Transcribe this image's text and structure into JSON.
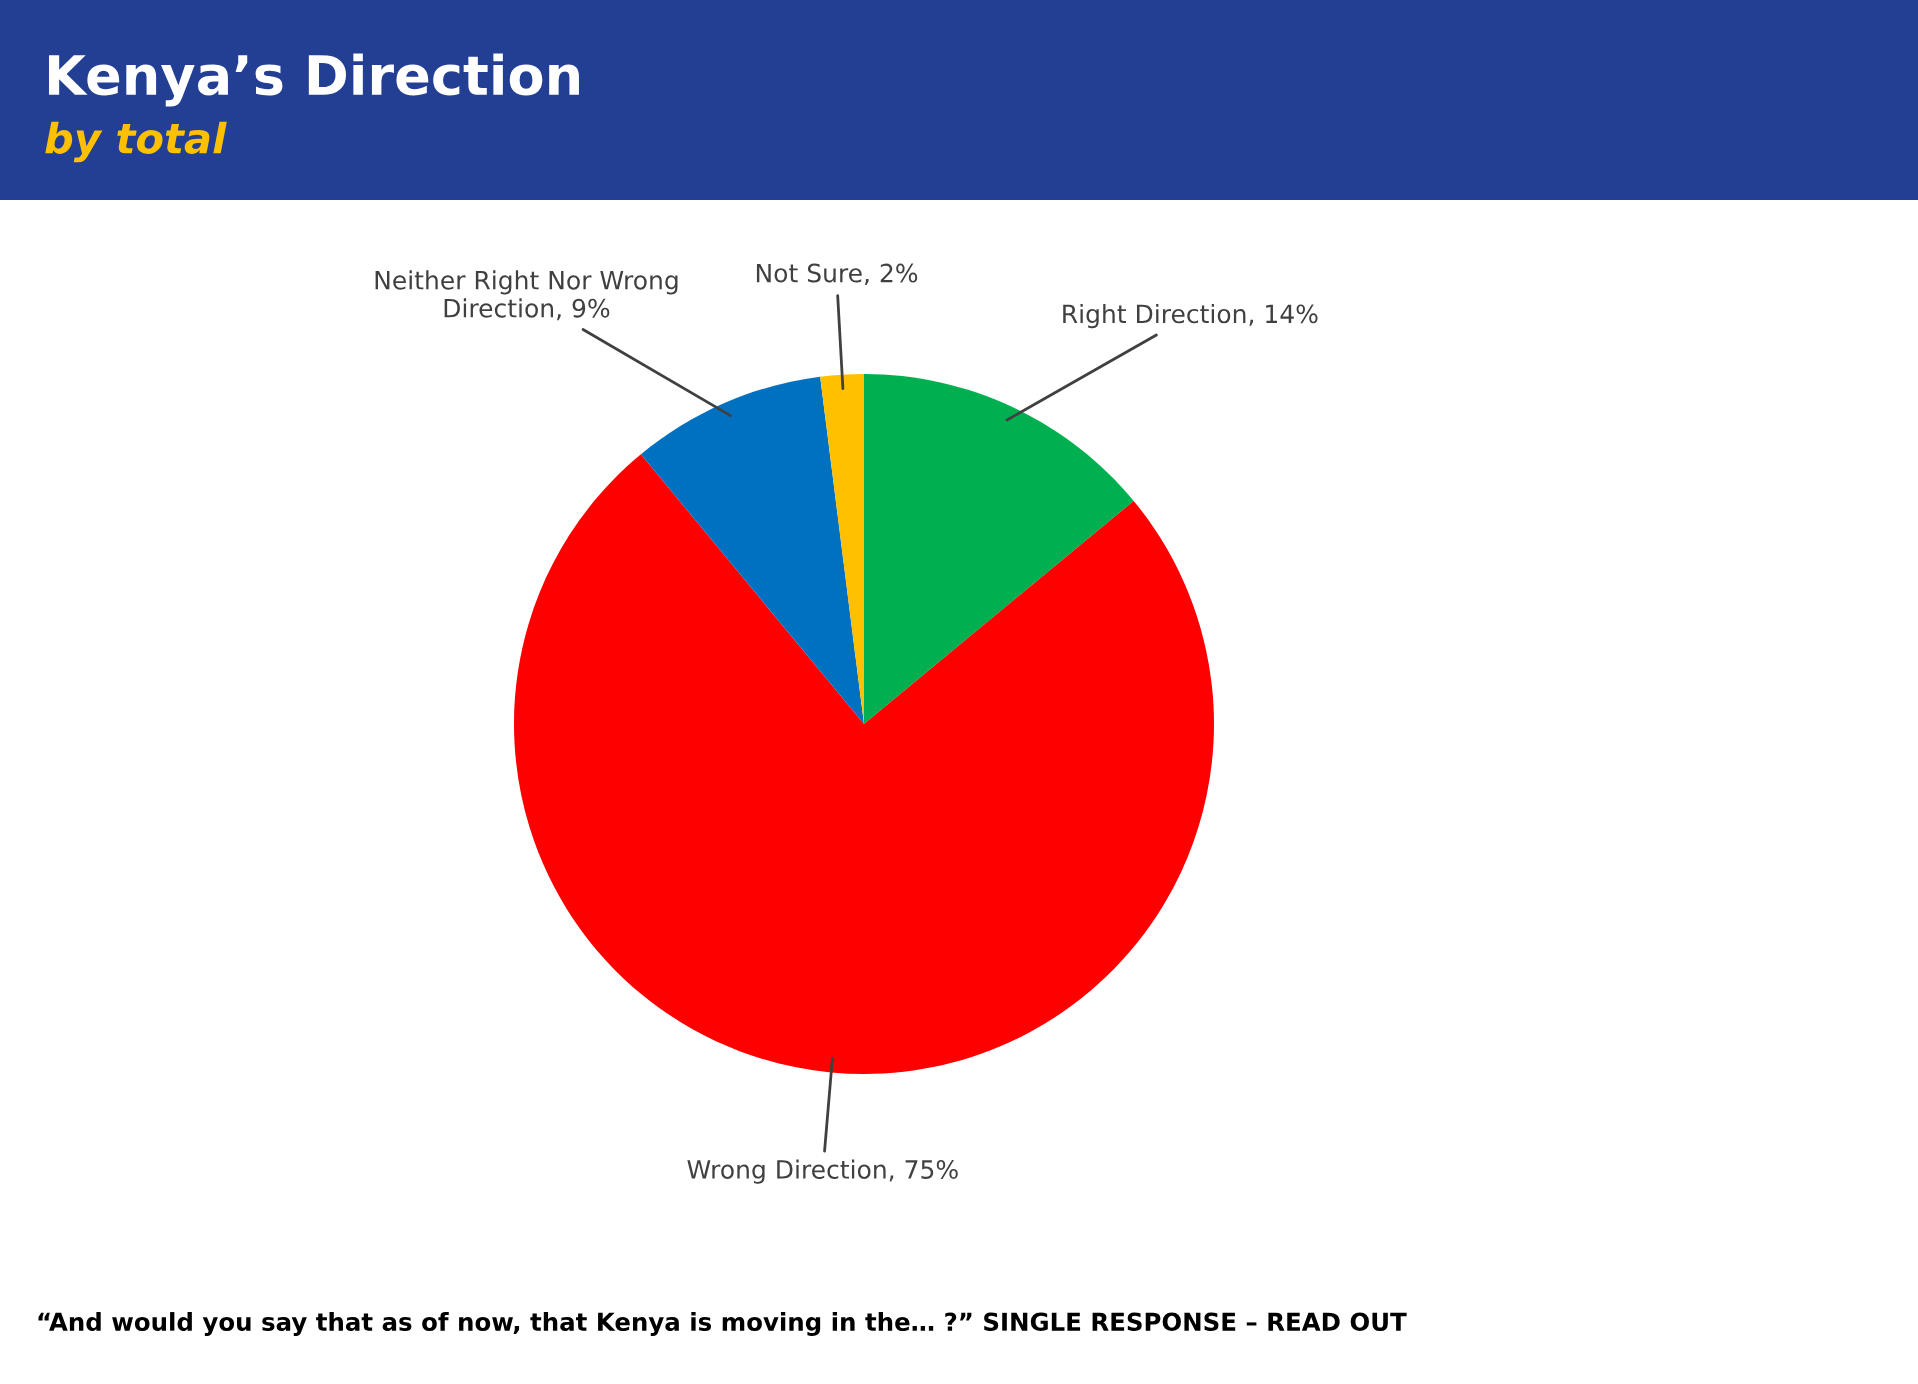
{
  "chart_data": {
    "type": "pie",
    "title": "Kenya’s Direction",
    "subtitle": "by total",
    "categories": [
      "Right Direction",
      "Wrong Direction",
      "Neither Right Nor Wrong Direction",
      "Not Sure"
    ],
    "values": [
      14,
      75,
      9,
      2
    ],
    "colors": [
      "#00b050",
      "#ff0000",
      "#0070c0",
      "#ffc000"
    ],
    "value_labels": [
      "14%",
      "75%",
      "9%",
      "2%"
    ],
    "annotations": [
      "“And would you say that as of now, that Kenya is moving in the… ?” SINGLE RESPONSE – READ OUT"
    ]
  }
}
